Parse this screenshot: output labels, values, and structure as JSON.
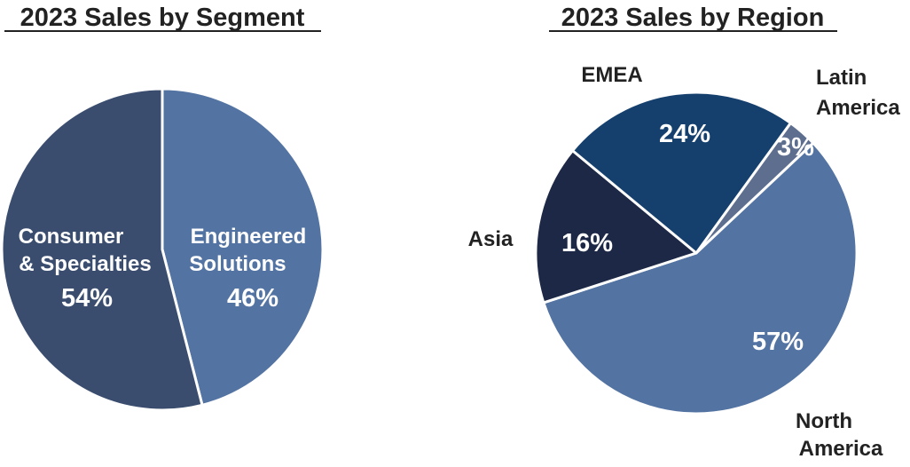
{
  "chart_data": [
    {
      "type": "pie",
      "title": "2023 Sales by Segment",
      "slices": [
        {
          "label_lines": [
            "Engineered",
            "Solutions"
          ],
          "value": 46,
          "pct_label": "46%",
          "color": "#5373A2",
          "label_placement": "inside"
        },
        {
          "label_lines": [
            "Consumer",
            "& Specialties"
          ],
          "value": 54,
          "pct_label": "54%",
          "color": "#3A4D6E",
          "label_placement": "inside"
        }
      ]
    },
    {
      "type": "pie",
      "title": "2023 Sales by Region",
      "slices": [
        {
          "label_lines": [
            "Latin",
            "America"
          ],
          "value": 3,
          "pct_label": "3%",
          "color": "#5E6E8F",
          "label_placement": "outside"
        },
        {
          "label_lines": [
            "North",
            "America"
          ],
          "value": 57,
          "pct_label": "57%",
          "color": "#5373A2",
          "label_placement": "outside"
        },
        {
          "label_lines": [
            "Asia"
          ],
          "value": 16,
          "pct_label": "16%",
          "color": "#1C2845",
          "label_placement": "outside"
        },
        {
          "label_lines": [
            "EMEA"
          ],
          "value": 24,
          "pct_label": "24%",
          "color": "#153F6D",
          "label_placement": "outside"
        }
      ]
    }
  ]
}
